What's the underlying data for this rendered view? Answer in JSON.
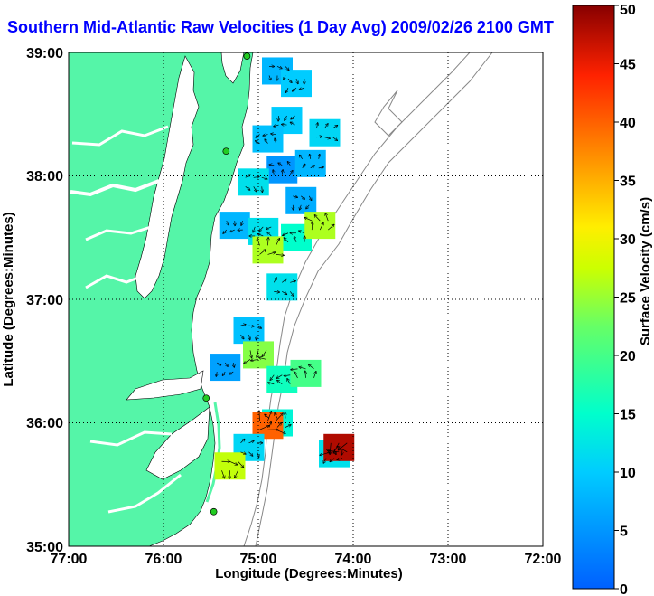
{
  "title": "Southern Mid-Atlantic Raw Velocities (1 Day Avg) 2009/02/26 2100 GMT",
  "axes": {
    "xlabel": "Longitude (Degrees:Minutes)",
    "ylabel": "Latitude (Degrees:Minutes)",
    "x_ticks": [
      "77:00",
      "76:00",
      "75:00",
      "74:00",
      "73:00",
      "72:00"
    ],
    "y_ticks": [
      "39:00",
      "38:00",
      "37:00",
      "36:00",
      "35:00"
    ]
  },
  "colorbar": {
    "label": "Surface Velocity (cm/s)",
    "min": 0,
    "max": 50,
    "ticks": [
      "50",
      "45",
      "40",
      "35",
      "30",
      "25",
      "20",
      "15",
      "10",
      "5",
      "0"
    ]
  },
  "colors": {
    "land": "#55f5a8",
    "title": "#0000ff",
    "site_marker": "#22cc22"
  },
  "chart_data": {
    "type": "heatmap",
    "title": "Southern Mid-Atlantic Raw Velocities (1 Day Avg) 2009/02/26 2100 GMT",
    "xlabel": "Longitude (Degrees:Minutes)",
    "ylabel": "Latitude (Degrees:Minutes)",
    "xlim": [
      -77,
      -72
    ],
    "ylim": [
      35,
      39
    ],
    "value_label": "Surface Velocity (cm/s)",
    "value_range": [
      0,
      50
    ],
    "grid": true,
    "sites": [
      {
        "lon": -75.12,
        "lat": 38.97
      },
      {
        "lon": -75.34,
        "lat": 38.2
      },
      {
        "lon": -75.55,
        "lat": 36.2
      },
      {
        "lon": -75.47,
        "lat": 35.28
      }
    ],
    "cells": [
      {
        "lon": -74.8,
        "lat": 38.85,
        "v": 8
      },
      {
        "lon": -74.6,
        "lat": 38.75,
        "v": 10
      },
      {
        "lon": -74.7,
        "lat": 38.45,
        "v": 10
      },
      {
        "lon": -74.9,
        "lat": 38.3,
        "v": 9
      },
      {
        "lon": -74.75,
        "lat": 38.05,
        "v": 5
      },
      {
        "lon": -74.45,
        "lat": 38.1,
        "v": 8
      },
      {
        "lon": -74.3,
        "lat": 38.35,
        "v": 11
      },
      {
        "lon": -75.05,
        "lat": 37.95,
        "v": 12
      },
      {
        "lon": -74.55,
        "lat": 37.8,
        "v": 7
      },
      {
        "lon": -75.25,
        "lat": 37.6,
        "v": 8
      },
      {
        "lon": -74.95,
        "lat": 37.55,
        "v": 12
      },
      {
        "lon": -74.6,
        "lat": 37.5,
        "v": 15
      },
      {
        "lon": -74.35,
        "lat": 37.6,
        "v": 26
      },
      {
        "lon": -74.9,
        "lat": 37.4,
        "v": 26
      },
      {
        "lon": -74.75,
        "lat": 37.1,
        "v": 12
      },
      {
        "lon": -75.1,
        "lat": 36.75,
        "v": 9
      },
      {
        "lon": -75.35,
        "lat": 36.45,
        "v": 6
      },
      {
        "lon": -75.0,
        "lat": 36.55,
        "v": 24
      },
      {
        "lon": -74.75,
        "lat": 36.35,
        "v": 16
      },
      {
        "lon": -74.5,
        "lat": 36.4,
        "v": 20
      },
      {
        "lon": -74.8,
        "lat": 36.0,
        "v": 14
      },
      {
        "lon": -74.9,
        "lat": 35.98,
        "v": 40
      },
      {
        "lon": -75.1,
        "lat": 35.8,
        "v": 11
      },
      {
        "lon": -75.3,
        "lat": 35.65,
        "v": 27
      },
      {
        "lon": -74.2,
        "lat": 35.75,
        "v": 12
      },
      {
        "lon": -74.15,
        "lat": 35.8,
        "v": 48
      }
    ]
  }
}
